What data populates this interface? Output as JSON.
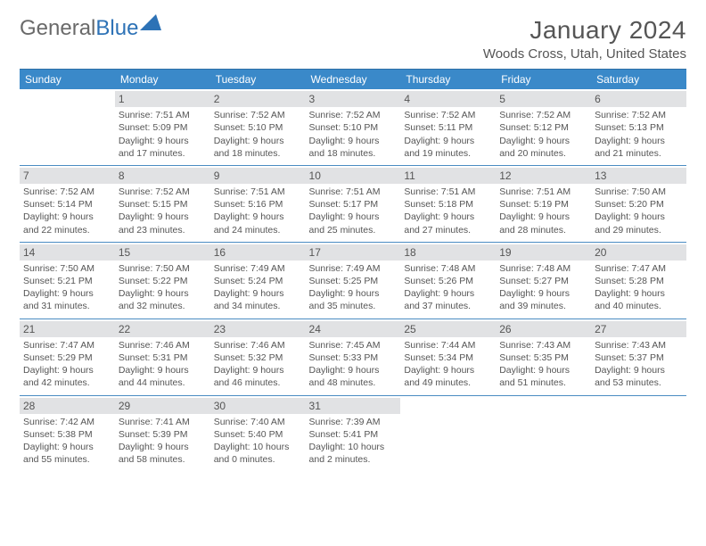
{
  "brand": {
    "name_part1": "General",
    "name_part2": "Blue"
  },
  "title": {
    "month": "January 2024",
    "location": "Woods Cross, Utah, United States"
  },
  "colors": {
    "header_bg": "#3a89c9",
    "header_text": "#ffffff",
    "daynum_bg": "#e1e2e4",
    "text": "#555555",
    "rule": "#4a8cc2"
  },
  "day_headers": [
    "Sunday",
    "Monday",
    "Tuesday",
    "Wednesday",
    "Thursday",
    "Friday",
    "Saturday"
  ],
  "weeks": [
    [
      {
        "n": "",
        "sunrise": "",
        "sunset": "",
        "daylight": ""
      },
      {
        "n": "1",
        "sunrise": "Sunrise: 7:51 AM",
        "sunset": "Sunset: 5:09 PM",
        "daylight": "Daylight: 9 hours and 17 minutes."
      },
      {
        "n": "2",
        "sunrise": "Sunrise: 7:52 AM",
        "sunset": "Sunset: 5:10 PM",
        "daylight": "Daylight: 9 hours and 18 minutes."
      },
      {
        "n": "3",
        "sunrise": "Sunrise: 7:52 AM",
        "sunset": "Sunset: 5:10 PM",
        "daylight": "Daylight: 9 hours and 18 minutes."
      },
      {
        "n": "4",
        "sunrise": "Sunrise: 7:52 AM",
        "sunset": "Sunset: 5:11 PM",
        "daylight": "Daylight: 9 hours and 19 minutes."
      },
      {
        "n": "5",
        "sunrise": "Sunrise: 7:52 AM",
        "sunset": "Sunset: 5:12 PM",
        "daylight": "Daylight: 9 hours and 20 minutes."
      },
      {
        "n": "6",
        "sunrise": "Sunrise: 7:52 AM",
        "sunset": "Sunset: 5:13 PM",
        "daylight": "Daylight: 9 hours and 21 minutes."
      }
    ],
    [
      {
        "n": "7",
        "sunrise": "Sunrise: 7:52 AM",
        "sunset": "Sunset: 5:14 PM",
        "daylight": "Daylight: 9 hours and 22 minutes."
      },
      {
        "n": "8",
        "sunrise": "Sunrise: 7:52 AM",
        "sunset": "Sunset: 5:15 PM",
        "daylight": "Daylight: 9 hours and 23 minutes."
      },
      {
        "n": "9",
        "sunrise": "Sunrise: 7:51 AM",
        "sunset": "Sunset: 5:16 PM",
        "daylight": "Daylight: 9 hours and 24 minutes."
      },
      {
        "n": "10",
        "sunrise": "Sunrise: 7:51 AM",
        "sunset": "Sunset: 5:17 PM",
        "daylight": "Daylight: 9 hours and 25 minutes."
      },
      {
        "n": "11",
        "sunrise": "Sunrise: 7:51 AM",
        "sunset": "Sunset: 5:18 PM",
        "daylight": "Daylight: 9 hours and 27 minutes."
      },
      {
        "n": "12",
        "sunrise": "Sunrise: 7:51 AM",
        "sunset": "Sunset: 5:19 PM",
        "daylight": "Daylight: 9 hours and 28 minutes."
      },
      {
        "n": "13",
        "sunrise": "Sunrise: 7:50 AM",
        "sunset": "Sunset: 5:20 PM",
        "daylight": "Daylight: 9 hours and 29 minutes."
      }
    ],
    [
      {
        "n": "14",
        "sunrise": "Sunrise: 7:50 AM",
        "sunset": "Sunset: 5:21 PM",
        "daylight": "Daylight: 9 hours and 31 minutes."
      },
      {
        "n": "15",
        "sunrise": "Sunrise: 7:50 AM",
        "sunset": "Sunset: 5:22 PM",
        "daylight": "Daylight: 9 hours and 32 minutes."
      },
      {
        "n": "16",
        "sunrise": "Sunrise: 7:49 AM",
        "sunset": "Sunset: 5:24 PM",
        "daylight": "Daylight: 9 hours and 34 minutes."
      },
      {
        "n": "17",
        "sunrise": "Sunrise: 7:49 AM",
        "sunset": "Sunset: 5:25 PM",
        "daylight": "Daylight: 9 hours and 35 minutes."
      },
      {
        "n": "18",
        "sunrise": "Sunrise: 7:48 AM",
        "sunset": "Sunset: 5:26 PM",
        "daylight": "Daylight: 9 hours and 37 minutes."
      },
      {
        "n": "19",
        "sunrise": "Sunrise: 7:48 AM",
        "sunset": "Sunset: 5:27 PM",
        "daylight": "Daylight: 9 hours and 39 minutes."
      },
      {
        "n": "20",
        "sunrise": "Sunrise: 7:47 AM",
        "sunset": "Sunset: 5:28 PM",
        "daylight": "Daylight: 9 hours and 40 minutes."
      }
    ],
    [
      {
        "n": "21",
        "sunrise": "Sunrise: 7:47 AM",
        "sunset": "Sunset: 5:29 PM",
        "daylight": "Daylight: 9 hours and 42 minutes."
      },
      {
        "n": "22",
        "sunrise": "Sunrise: 7:46 AM",
        "sunset": "Sunset: 5:31 PM",
        "daylight": "Daylight: 9 hours and 44 minutes."
      },
      {
        "n": "23",
        "sunrise": "Sunrise: 7:46 AM",
        "sunset": "Sunset: 5:32 PM",
        "daylight": "Daylight: 9 hours and 46 minutes."
      },
      {
        "n": "24",
        "sunrise": "Sunrise: 7:45 AM",
        "sunset": "Sunset: 5:33 PM",
        "daylight": "Daylight: 9 hours and 48 minutes."
      },
      {
        "n": "25",
        "sunrise": "Sunrise: 7:44 AM",
        "sunset": "Sunset: 5:34 PM",
        "daylight": "Daylight: 9 hours and 49 minutes."
      },
      {
        "n": "26",
        "sunrise": "Sunrise: 7:43 AM",
        "sunset": "Sunset: 5:35 PM",
        "daylight": "Daylight: 9 hours and 51 minutes."
      },
      {
        "n": "27",
        "sunrise": "Sunrise: 7:43 AM",
        "sunset": "Sunset: 5:37 PM",
        "daylight": "Daylight: 9 hours and 53 minutes."
      }
    ],
    [
      {
        "n": "28",
        "sunrise": "Sunrise: 7:42 AM",
        "sunset": "Sunset: 5:38 PM",
        "daylight": "Daylight: 9 hours and 55 minutes."
      },
      {
        "n": "29",
        "sunrise": "Sunrise: 7:41 AM",
        "sunset": "Sunset: 5:39 PM",
        "daylight": "Daylight: 9 hours and 58 minutes."
      },
      {
        "n": "30",
        "sunrise": "Sunrise: 7:40 AM",
        "sunset": "Sunset: 5:40 PM",
        "daylight": "Daylight: 10 hours and 0 minutes."
      },
      {
        "n": "31",
        "sunrise": "Sunrise: 7:39 AM",
        "sunset": "Sunset: 5:41 PM",
        "daylight": "Daylight: 10 hours and 2 minutes."
      },
      {
        "n": "",
        "sunrise": "",
        "sunset": "",
        "daylight": ""
      },
      {
        "n": "",
        "sunrise": "",
        "sunset": "",
        "daylight": ""
      },
      {
        "n": "",
        "sunrise": "",
        "sunset": "",
        "daylight": ""
      }
    ]
  ]
}
